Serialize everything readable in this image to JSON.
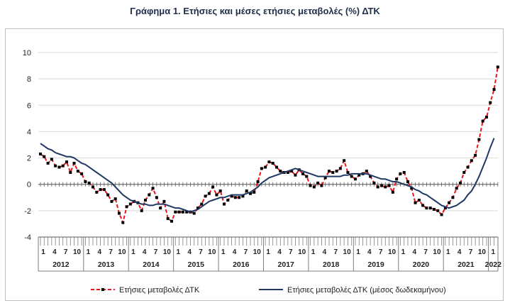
{
  "title": "Γράφημα 1. Ετήσιες και μέσες ετήσιες μεταβολές (%) ΔΤΚ",
  "chart_data": {
    "type": "line",
    "title": "Γράφημα 1. Ετήσιες και μέσες ετήσιες μεταβολές (%) ΔΤΚ",
    "xlabel": "",
    "ylabel": "",
    "ylim": [
      -4,
      10
    ],
    "yticks": [
      "10",
      "8",
      "6",
      "4",
      "2",
      "0",
      "-2",
      "-4"
    ],
    "year_labels": [
      "2012",
      "2013",
      "2014",
      "2015",
      "2016",
      "2017",
      "2018",
      "2019",
      "2020",
      "2021",
      "2022"
    ],
    "month_tick_labels": [
      "1",
      "4",
      "7",
      "10"
    ],
    "grid": "horizontal",
    "legend_position": "bottom",
    "series": [
      {
        "name": "Ετήσιες μεταβολές ΔΤΚ",
        "color": "#e8151b",
        "style": "dashed-with-markers",
        "values": [
          2.3,
          2.1,
          1.6,
          1.9,
          1.4,
          1.3,
          1.4,
          1.7,
          0.9,
          1.6,
          1.0,
          0.8,
          0.2,
          0.1,
          -0.2,
          -0.6,
          -0.4,
          -0.4,
          -0.8,
          -1.3,
          -1.1,
          -2.2,
          -2.9,
          -1.7,
          -1.5,
          -1.3,
          -1.4,
          -2.0,
          -1.2,
          -0.8,
          -0.3,
          -1.0,
          -1.8,
          -1.3,
          -2.6,
          -2.8,
          -2.1,
          -2.1,
          -2.1,
          -2.1,
          -2.1,
          -2.2,
          -1.8,
          -1.5,
          -0.9,
          -0.7,
          -0.2,
          -0.8,
          -0.5,
          -1.5,
          -1.2,
          -0.9,
          -1.0,
          -1.0,
          -0.9,
          -0.5,
          -0.7,
          -0.6,
          0.2,
          1.2,
          1.3,
          1.7,
          1.6,
          1.3,
          1.0,
          0.9,
          0.9,
          1.0,
          0.7,
          1.1,
          0.8,
          0.6,
          -0.1,
          -0.2,
          0.1,
          -0.1,
          0.5,
          1.0,
          0.9,
          1.0,
          1.2,
          1.8,
          0.9,
          0.6,
          0.4,
          0.7,
          0.8,
          1.0,
          0.6,
          0.1,
          -0.2,
          -0.1,
          -0.2,
          -0.1,
          -0.6,
          0.4,
          0.8,
          0.9,
          0.2,
          -0.3,
          -1.4,
          -1.2,
          -1.6,
          -1.8,
          -1.8,
          -1.9,
          -2.0,
          -2.3,
          -1.8,
          -1.4,
          -1.0,
          -0.3,
          0.1,
          0.9,
          1.3,
          1.8,
          2.2,
          3.4,
          4.8,
          5.1,
          6.2,
          7.2,
          8.9
        ]
      },
      {
        "name": "Ετήσιες μεταβολές ΔΤΚ (μέσος δωδεκαμήνου)",
        "color": "#1f3864",
        "style": "solid",
        "values": [
          3.1,
          2.9,
          2.7,
          2.6,
          2.4,
          2.3,
          2.2,
          2.1,
          2.1,
          2.0,
          1.8,
          1.6,
          1.5,
          1.3,
          1.1,
          0.9,
          0.7,
          0.5,
          0.3,
          0.1,
          -0.2,
          -0.5,
          -0.8,
          -1.0,
          -1.2,
          -1.3,
          -1.4,
          -1.5,
          -1.5,
          -1.6,
          -1.6,
          -1.5,
          -1.5,
          -1.5,
          -1.6,
          -1.7,
          -1.8,
          -1.8,
          -1.9,
          -2.0,
          -2.1,
          -2.0,
          -1.9,
          -1.7,
          -1.5,
          -1.3,
          -1.2,
          -1.1,
          -1.0,
          -1.0,
          -0.9,
          -0.8,
          -0.8,
          -0.8,
          -0.8,
          -0.7,
          -0.6,
          -0.4,
          -0.2,
          0.1,
          0.3,
          0.5,
          0.6,
          0.7,
          0.8,
          0.9,
          1.0,
          1.1,
          1.2,
          1.1,
          1.0,
          0.9,
          0.8,
          0.7,
          0.6,
          0.6,
          0.6,
          0.6,
          0.6,
          0.6,
          0.6,
          0.7,
          0.7,
          0.8,
          0.8,
          0.8,
          0.8,
          0.8,
          0.7,
          0.6,
          0.5,
          0.4,
          0.4,
          0.3,
          0.2,
          0.2,
          0.1,
          0.0,
          -0.1,
          -0.2,
          -0.4,
          -0.5,
          -0.7,
          -0.8,
          -1.0,
          -1.2,
          -1.4,
          -1.6,
          -1.7,
          -1.8,
          -1.7,
          -1.6,
          -1.4,
          -1.2,
          -0.8,
          -0.5,
          0.0,
          0.6,
          1.3,
          2.0,
          2.8,
          3.5
        ]
      }
    ]
  }
}
